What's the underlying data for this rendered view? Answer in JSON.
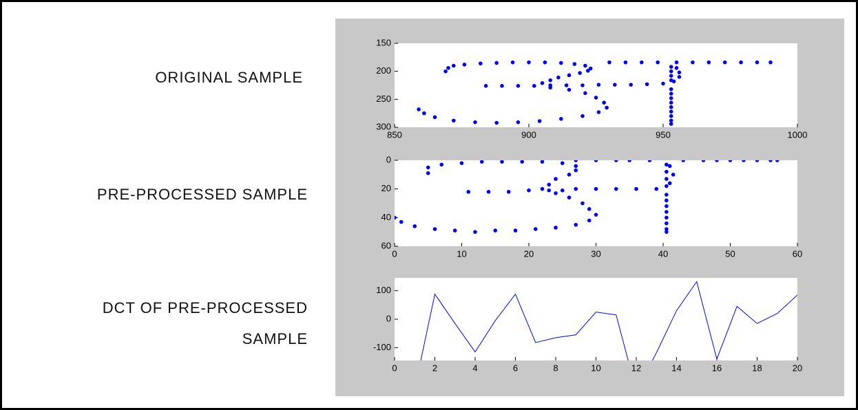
{
  "labels": [
    "ORIGINAL SAMPLE",
    "PRE-PROCESSED SAMPLE",
    "DCT OF PRE-PROCESSED",
    "SAMPLE"
  ],
  "chart_data": [
    {
      "type": "scatter",
      "color": "#0000ff",
      "xlim": [
        850,
        1000
      ],
      "ylim": [
        150,
        300
      ],
      "y_reversed": true,
      "xticks": [
        850,
        900,
        950,
        1000
      ],
      "yticks": [
        150,
        200,
        250,
        300
      ],
      "x": [
        869,
        870,
        872,
        876,
        882,
        888,
        894,
        900,
        906,
        912,
        917,
        921,
        923,
        922,
        919,
        915,
        911,
        908,
        905,
        884,
        890,
        896,
        902,
        908,
        914,
        920,
        926,
        932,
        938,
        944,
        950,
        908,
        915,
        921,
        925,
        928,
        929,
        926,
        920,
        912,
        904,
        896,
        888,
        880,
        872,
        865,
        861,
        859,
        930,
        936,
        942,
        948,
        955,
        961,
        967,
        973,
        979,
        985,
        990,
        953,
        953,
        953,
        953,
        953,
        953,
        953,
        953,
        953,
        953,
        953,
        953,
        953,
        955,
        956,
        956,
        954
      ],
      "y": [
        200,
        194,
        190,
        188,
        186,
        185,
        184,
        184,
        184,
        185,
        187,
        190,
        195,
        199,
        203,
        207,
        211,
        216,
        221,
        226,
        226,
        226,
        226,
        225,
        225,
        225,
        224,
        224,
        224,
        223,
        222,
        229,
        233,
        239,
        247,
        256,
        265,
        273,
        280,
        285,
        289,
        291,
        292,
        291,
        288,
        282,
        275,
        268,
        184,
        184,
        184,
        184,
        184,
        184,
        184,
        184,
        184,
        184,
        184,
        192,
        200,
        208,
        216,
        232,
        240,
        248,
        256,
        264,
        272,
        280,
        288,
        294,
        194,
        202,
        210,
        218
      ]
    },
    {
      "type": "scatter",
      "color": "#0000ff",
      "xlim": [
        0,
        60
      ],
      "ylim": [
        0,
        60
      ],
      "y_reversed": true,
      "xticks": [
        0,
        10,
        20,
        30,
        40,
        50,
        60
      ],
      "yticks": [
        0,
        20,
        40,
        60
      ],
      "x": [
        5,
        5,
        7,
        10,
        13,
        16,
        19,
        22,
        25,
        27,
        27,
        26,
        24,
        23,
        22,
        11,
        14,
        17,
        20,
        23,
        25,
        27,
        30,
        33,
        36,
        39,
        24,
        26,
        28,
        29,
        30,
        29,
        27,
        24,
        21,
        18,
        15,
        12,
        9,
        6,
        3,
        1,
        0,
        27,
        30,
        33,
        35,
        38,
        43,
        46,
        48,
        50,
        52,
        54,
        56,
        57,
        40.5,
        40.5,
        40.5,
        40.5,
        40.5,
        40.5,
        40.5,
        40.5,
        40.5,
        40.5,
        40.5,
        40.5,
        41,
        41.5,
        41
      ],
      "y": [
        9,
        5,
        3,
        2,
        1,
        1,
        1,
        1,
        2,
        4,
        7,
        10,
        13,
        17,
        20,
        22,
        22,
        22,
        21,
        21,
        21,
        20,
        20,
        20,
        20,
        20,
        23,
        26,
        30,
        34,
        38,
        42,
        45,
        47,
        48,
        49,
        49,
        50,
        49,
        48,
        46,
        43,
        40,
        0,
        0,
        0,
        0,
        0,
        0,
        0,
        0,
        0,
        0,
        0,
        0,
        0,
        3,
        8,
        13,
        18,
        24,
        28,
        32,
        36,
        40,
        44,
        48,
        50,
        4,
        10,
        16
      ]
    },
    {
      "type": "line",
      "color": "#0000ff",
      "xlim": [
        0,
        20
      ],
      "ylim": [
        -145,
        145
      ],
      "y_reversed": false,
      "xticks": [
        0,
        2,
        4,
        6,
        8,
        10,
        12,
        14,
        16,
        18,
        20
      ],
      "yticks": [
        -100,
        0,
        100
      ],
      "x": [
        1,
        2,
        3,
        4,
        5,
        6,
        7,
        8,
        9,
        10,
        11,
        12,
        13,
        14,
        15,
        16,
        17,
        18,
        19,
        20
      ],
      "y": [
        -245,
        88,
        -15,
        -115,
        -5,
        88,
        -82,
        -65,
        -55,
        25,
        15,
        -252,
        -118,
        30,
        132,
        -140,
        45,
        -15,
        20,
        85
      ]
    }
  ]
}
